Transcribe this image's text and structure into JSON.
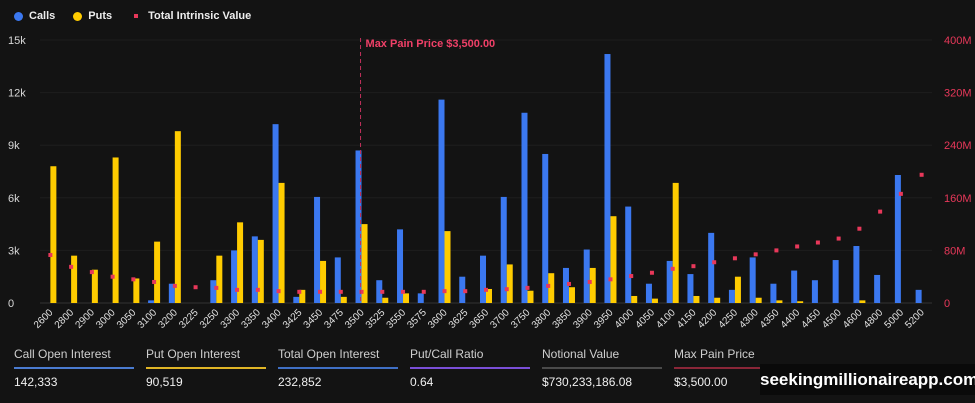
{
  "legend": {
    "calls": "Calls",
    "puts": "Puts",
    "tiv": "Total Intrinsic Value"
  },
  "colors": {
    "calls": "#3b78f0",
    "puts": "#ffcc00",
    "tiv": "#e8385a",
    "background": "#131313"
  },
  "chart_data": {
    "type": "bar",
    "categories": [
      "2600",
      "2800",
      "2900",
      "3000",
      "3050",
      "3100",
      "3200",
      "3225",
      "3250",
      "3300",
      "3350",
      "3400",
      "3425",
      "3450",
      "3475",
      "3500",
      "3525",
      "3550",
      "3575",
      "3600",
      "3625",
      "3650",
      "3700",
      "3750",
      "3800",
      "3850",
      "3900",
      "3950",
      "4000",
      "4050",
      "4100",
      "4150",
      "4200",
      "4250",
      "4300",
      "4350",
      "4400",
      "4450",
      "4500",
      "4600",
      "4800",
      "5000",
      "5200"
    ],
    "series": [
      {
        "name": "Calls",
        "axis": "left",
        "type": "bar",
        "values": [
          0,
          0,
          0,
          0,
          0,
          150,
          1100,
          0,
          1300,
          3000,
          3800,
          10200,
          350,
          6050,
          2600,
          8700,
          1300,
          4200,
          550,
          11600,
          1500,
          2700,
          6050,
          10850,
          8500,
          2000,
          3050,
          14200,
          5500,
          1100,
          2400,
          1650,
          4000,
          750,
          2600,
          1100,
          1850,
          1300,
          2450,
          3250,
          1600,
          7300,
          750
        ]
      },
      {
        "name": "Puts",
        "axis": "left",
        "type": "bar",
        "values": [
          7800,
          2700,
          1900,
          8300,
          1400,
          3500,
          9800,
          0,
          2700,
          4600,
          3600,
          6850,
          750,
          2400,
          350,
          4500,
          300,
          550,
          0,
          4100,
          0,
          800,
          2200,
          700,
          1700,
          900,
          2000,
          4950,
          400,
          250,
          6850,
          400,
          300,
          1500,
          300,
          150,
          100,
          0,
          0,
          150,
          0,
          0,
          0
        ]
      },
      {
        "name": "Total Intrinsic Value",
        "axis": "right",
        "type": "scatter",
        "values": [
          73,
          55,
          47,
          40,
          36,
          32,
          26,
          24,
          23,
          20,
          20,
          18,
          17,
          17,
          17,
          17,
          17,
          17,
          17,
          18,
          18,
          20,
          21,
          23,
          26,
          29,
          32,
          36,
          41,
          46,
          52,
          56,
          62,
          68,
          74,
          80,
          86,
          92,
          98,
          113,
          139,
          166,
          195
        ]
      }
    ],
    "left_axis": {
      "ylim": [
        0,
        15000
      ],
      "ticks": [
        "0",
        "3k",
        "6k",
        "9k",
        "12k",
        "15k"
      ]
    },
    "right_axis": {
      "ylim": [
        0,
        400
      ],
      "unit": "M",
      "ticks": [
        "0",
        "80M",
        "160M",
        "240M",
        "320M",
        "400M"
      ]
    },
    "annotation": {
      "category": "3500",
      "label": "Max Pain Price $3,500.00"
    },
    "grid": true,
    "legend_position": "top-left"
  },
  "stats": [
    {
      "label": "Call Open Interest",
      "value": "142,333",
      "color": "#4a7bd0"
    },
    {
      "label": "Put Open Interest",
      "value": "90,519",
      "color": "#e0b526"
    },
    {
      "label": "Total Open Interest",
      "value": "232,852",
      "color": "#3f6fc4"
    },
    {
      "label": "Put/Call Ratio",
      "value": "0.64",
      "color": "#7a4fd8"
    },
    {
      "label": "Notional Value",
      "value": "$730,233,186.08",
      "color": "#4a4a4a"
    },
    {
      "label": "Max Pain Price",
      "value": "$3,500.00",
      "color": "#8a2638"
    }
  ],
  "watermark": "seekingmillionaireapp.com"
}
